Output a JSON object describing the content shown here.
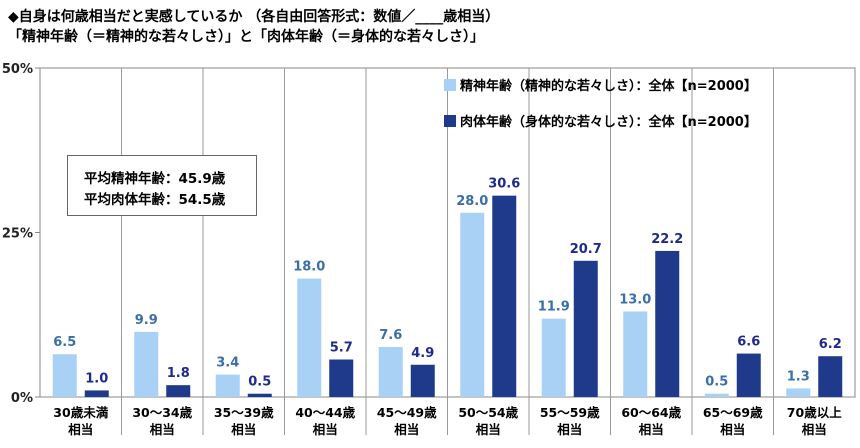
{
  "title": {
    "line1": "◆自身は何歳相当だと実感しているか （各自由回答形式：数値／____歳相当）",
    "line2": "「精神年齢（＝精神的な若々しさ）」と「肉体年齢（＝身体的な若々しさ）」"
  },
  "average_box": {
    "line1": "平均精神年齢：45.9歳",
    "line2": "平均肉体年齢：54.5歳"
  },
  "chart_data": {
    "type": "bar",
    "categories": [
      [
        "30歳未満",
        "相当"
      ],
      [
        "30～34歳",
        "相当"
      ],
      [
        "35～39歳",
        "相当"
      ],
      [
        "40～44歳",
        "相当"
      ],
      [
        "45～49歳",
        "相当"
      ],
      [
        "50～54歳",
        "相当"
      ],
      [
        "55～59歳",
        "相当"
      ],
      [
        "60～64歳",
        "相当"
      ],
      [
        "65～69歳",
        "相当"
      ],
      [
        "70歳以上",
        "相当"
      ]
    ],
    "series": [
      {
        "name": "精神年齢（精神的な若々しさ）：全体【n=2000】",
        "color": "#a9d0f5",
        "values": [
          6.5,
          9.9,
          3.4,
          18.0,
          7.6,
          28.0,
          11.9,
          13.0,
          0.5,
          1.3
        ],
        "labels": [
          "6.5",
          "9.9",
          "3.4",
          "18.0",
          "7.6",
          "28.0",
          "11.9",
          "13.0",
          "0.5",
          "1.3"
        ]
      },
      {
        "name": "肉体年齢（身体的な若々しさ）：全体【n=2000】",
        "color": "#1f3a8a",
        "values": [
          1.0,
          1.8,
          0.5,
          5.7,
          4.9,
          30.6,
          20.7,
          22.2,
          6.6,
          6.2
        ],
        "labels": [
          "1.0",
          "1.8",
          "0.5",
          "5.7",
          "4.9",
          "30.6",
          "20.7",
          "22.2",
          "6.6",
          "6.2"
        ]
      }
    ],
    "ylim": [
      0,
      50
    ],
    "yticks": [
      0,
      25,
      50
    ],
    "ytick_labels": [
      "0%",
      "25%",
      "50%"
    ],
    "legend_position": "top-right",
    "grid": false
  }
}
